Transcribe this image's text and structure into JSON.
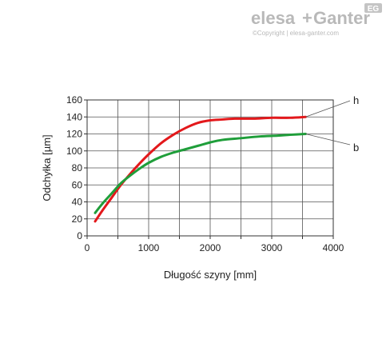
{
  "brand": {
    "name_part1": "elesa",
    "plus": "+",
    "name_part2": "Ganter",
    "badge": "EG",
    "copyright": "©Copyright | elesa-ganter.com"
  },
  "chart_data": {
    "type": "line",
    "title": "",
    "xlabel": "Długość szyny [mm]",
    "ylabel": "Odchyłka [µm]",
    "xlim": [
      0,
      4000
    ],
    "ylim": [
      0,
      160
    ],
    "xticks": [
      0,
      1000,
      2000,
      3000,
      4000
    ],
    "yticks": [
      0,
      20,
      40,
      60,
      80,
      100,
      120,
      140,
      160
    ],
    "grid": true,
    "series": [
      {
        "name": "h",
        "color": "#e3181b",
        "x": [
          130,
          250,
          400,
          550,
          700,
          850,
          1000,
          1200,
          1400,
          1600,
          1800,
          2000,
          2200,
          2400,
          2700,
          3000,
          3300,
          3550
        ],
        "y": [
          17,
          30,
          45,
          60,
          73,
          85,
          96,
          109,
          119,
          127,
          133,
          136,
          137,
          138,
          138,
          139,
          139,
          140
        ]
      },
      {
        "name": "b",
        "color": "#1f9e3a",
        "x": [
          130,
          250,
          400,
          550,
          700,
          850,
          1000,
          1200,
          1400,
          1600,
          1800,
          2000,
          2200,
          2500,
          2800,
          3100,
          3300,
          3550
        ],
        "y": [
          27,
          38,
          50,
          62,
          71,
          79,
          86,
          93,
          98,
          102,
          106,
          110,
          113,
          115,
          117,
          118,
          119,
          120
        ]
      }
    ]
  }
}
